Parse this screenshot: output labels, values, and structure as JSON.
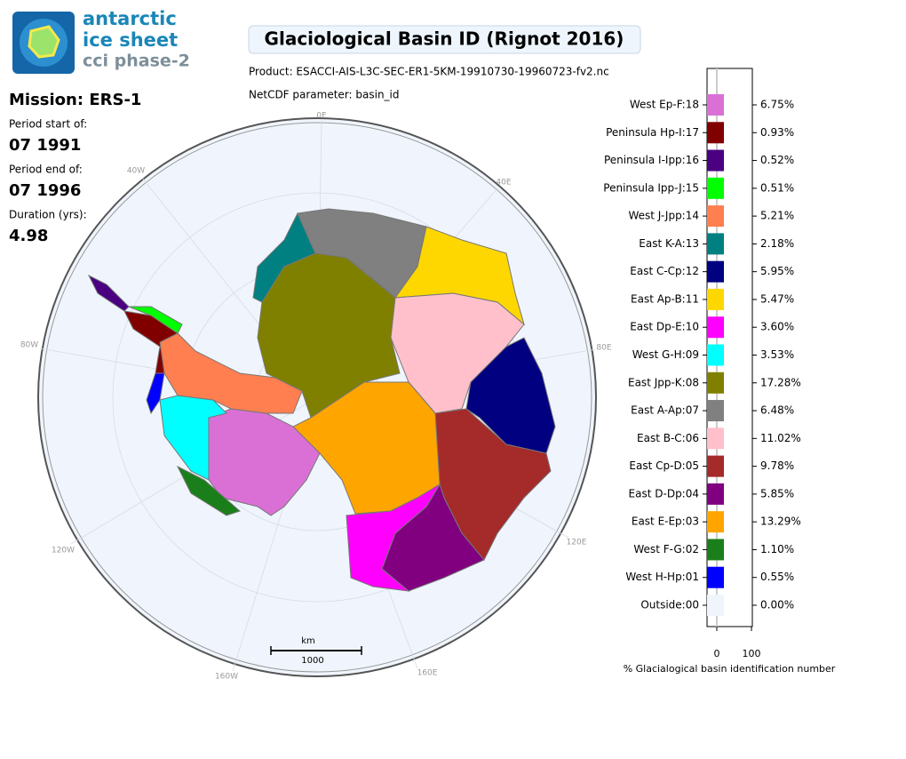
{
  "logo": {
    "line1": "antarctic",
    "line2": "ice sheet",
    "line3": "cci phase-2"
  },
  "mission": {
    "title": "Mission: ERS-1",
    "start_label": "Period start of:",
    "start": "07 1991",
    "end_label": "Period end of:",
    "end": "07 1996",
    "duration_label": "Duration (yrs):",
    "duration": "4.98"
  },
  "header": {
    "title": "Glaciological Basin ID (Rignot 2016)",
    "product": "Product: ESACCI-AIS-L3C-SEC-ER1-5KM-19910730-19960723-fv2.nc",
    "parameter": "NetCDF parameter: basin_id"
  },
  "map": {
    "graticule_labels": [
      "0E",
      "40E",
      "80E",
      "120E",
      "160E",
      "160W",
      "120W",
      "80W",
      "40W"
    ],
    "scale_unit": "km",
    "scale_length": "1000"
  },
  "legend": {
    "axis_label": "% Glacialogical basin identification number",
    "ticks": [
      "0",
      "100"
    ],
    "items": [
      {
        "label": "West Ep-F:18",
        "percent": "6.75%",
        "color": "#da70d6"
      },
      {
        "label": "Peninsula Hp-I:17",
        "percent": "0.93%",
        "color": "#800000"
      },
      {
        "label": "Peninsula I-Ipp:16",
        "percent": "0.52%",
        "color": "#4b0082"
      },
      {
        "label": "Peninsula Ipp-J:15",
        "percent": "0.51%",
        "color": "#00ff00"
      },
      {
        "label": "West J-Jpp:14",
        "percent": "5.21%",
        "color": "#ff7f50"
      },
      {
        "label": "East K-A:13",
        "percent": "2.18%",
        "color": "#008080"
      },
      {
        "label": "East C-Cp:12",
        "percent": "5.95%",
        "color": "#000080"
      },
      {
        "label": "East Ap-B:11",
        "percent": "5.47%",
        "color": "#ffd700"
      },
      {
        "label": "East Dp-E:10",
        "percent": "3.60%",
        "color": "#ff00ff"
      },
      {
        "label": "West G-H:09",
        "percent": "3.53%",
        "color": "#00ffff"
      },
      {
        "label": "East Jpp-K:08",
        "percent": "17.28%",
        "color": "#808000"
      },
      {
        "label": "East A-Ap:07",
        "percent": "6.48%",
        "color": "#808080"
      },
      {
        "label": "East B-C:06",
        "percent": "11.02%",
        "color": "#ffc0cb"
      },
      {
        "label": "East Cp-D:05",
        "percent": "9.78%",
        "color": "#a52a2a"
      },
      {
        "label": "East D-Dp:04",
        "percent": "5.85%",
        "color": "#800080"
      },
      {
        "label": "East E-Ep:03",
        "percent": "13.29%",
        "color": "#ffa500"
      },
      {
        "label": "West F-G:02",
        "percent": "1.10%",
        "color": "#1a7f1a"
      },
      {
        "label": "West H-Hp:01",
        "percent": "0.55%",
        "color": "#0000ff"
      },
      {
        "label": "Outside:00",
        "percent": "0.00%",
        "color": "#f0f4fb"
      }
    ]
  }
}
